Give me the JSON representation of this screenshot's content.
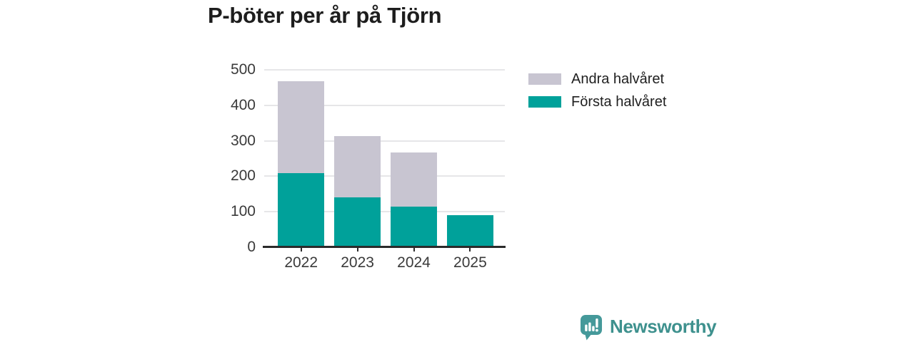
{
  "title": "P-böter per år på Tjörn",
  "chart_data": {
    "type": "bar",
    "stacked": true,
    "title": "P-böter per år på Tjörn",
    "categories": [
      "2022",
      "2023",
      "2024",
      "2025"
    ],
    "series": [
      {
        "name": "Första halvåret",
        "color": "#00a19a",
        "values": [
          209,
          140,
          115,
          90
        ]
      },
      {
        "name": "Andra halvåret",
        "color": "#c8c5d1",
        "values": [
          259,
          174,
          153,
          0
        ]
      }
    ],
    "xlabel": "",
    "ylabel": "",
    "ylim": [
      0,
      500
    ],
    "yticks": [
      0,
      100,
      200,
      300,
      400,
      500
    ],
    "grid": true,
    "legend_position": "right-top"
  },
  "legend": {
    "items": [
      {
        "label": "Andra halvåret",
        "color": "#c8c5d1"
      },
      {
        "label": "Första halvåret",
        "color": "#00a19a"
      }
    ]
  },
  "branding": {
    "name": "Newsworthy",
    "icon": "bar-chart-speech-bubble-icon",
    "icon_color": "#45999a",
    "text_color": "#3e918e"
  },
  "colors": {
    "background": "#ffffff",
    "grid": "#e6e6e8",
    "axis": "#2b2b2b",
    "tick_text": "#3a3a3a",
    "title_text": "#1d1d1d"
  }
}
